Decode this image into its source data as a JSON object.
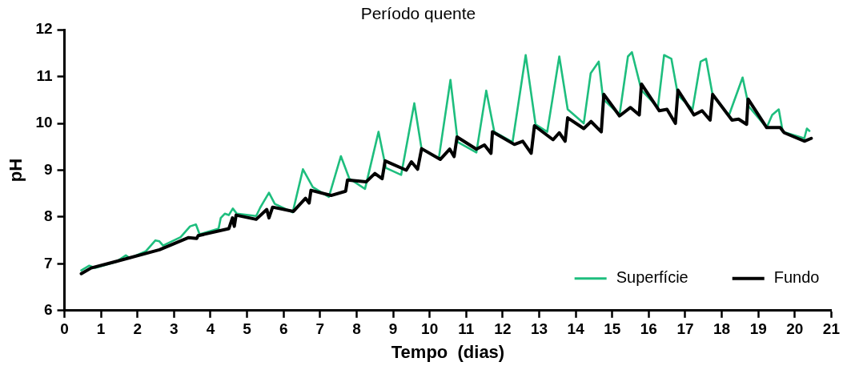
{
  "chart_data": {
    "type": "line",
    "title": "Período quente",
    "xlabel": "Tempo  (dias)",
    "ylabel": "pH",
    "xlim": [
      0,
      21
    ],
    "xticks": [
      0,
      1,
      2,
      3,
      4,
      5,
      6,
      7,
      8,
      9,
      10,
      11,
      12,
      13,
      14,
      15,
      16,
      17,
      18,
      19,
      20,
      21
    ],
    "ylim": [
      6,
      12
    ],
    "yticks": [
      6,
      7,
      8,
      9,
      10,
      11,
      12
    ],
    "grid": false,
    "legend": "bottom right",
    "marker": "none",
    "line_style": "solid",
    "series": [
      {
        "name": "Superfície",
        "color": "#1ebe7e",
        "x": [
          0.46,
          0.68,
          0.84,
          1.41,
          1.68,
          1.79,
          2.23,
          2.49,
          2.6,
          2.7,
          3.18,
          3.44,
          3.6,
          3.7,
          4.22,
          4.28,
          4.39,
          4.5,
          4.61,
          4.72,
          5.25,
          5.36,
          5.6,
          5.76,
          6.25,
          6.53,
          6.8,
          7.24,
          7.57,
          7.8,
          8.23,
          8.6,
          8.8,
          9.22,
          9.58,
          9.78,
          10.25,
          10.57,
          10.77,
          11.28,
          11.55,
          11.77,
          12.27,
          12.63,
          12.9,
          13.22,
          13.55,
          13.78,
          14.22,
          14.41,
          14.63,
          14.75,
          15.2,
          15.43,
          15.54,
          15.8,
          16.25,
          16.42,
          16.62,
          16.8,
          17.2,
          17.42,
          17.57,
          17.75,
          18.19,
          18.57,
          18.74,
          19.23,
          19.38,
          19.56,
          19.67,
          20.26,
          20.33,
          20.4
        ],
        "values": [
          6.86,
          6.96,
          6.91,
          7.04,
          7.18,
          7.12,
          7.27,
          7.5,
          7.48,
          7.39,
          7.57,
          7.8,
          7.84,
          7.63,
          7.75,
          7.98,
          8.07,
          8.04,
          8.18,
          8.07,
          8.02,
          8.2,
          8.52,
          8.28,
          8.1,
          9.02,
          8.64,
          8.43,
          9.3,
          8.82,
          8.6,
          9.82,
          9.05,
          8.9,
          10.43,
          9.45,
          9.25,
          10.93,
          9.6,
          9.38,
          10.7,
          9.82,
          9.6,
          11.46,
          9.98,
          9.82,
          11.43,
          10.3,
          10.0,
          11.07,
          11.32,
          10.52,
          10.18,
          11.43,
          11.52,
          10.71,
          10.34,
          11.46,
          11.38,
          10.6,
          10.3,
          11.32,
          11.38,
          10.6,
          10.16,
          10.98,
          10.36,
          9.91,
          10.18,
          10.3,
          9.82,
          9.68,
          9.89,
          9.84
        ]
      },
      {
        "name": "Fundo",
        "color": "#000000",
        "x": [
          0.46,
          0.73,
          1.41,
          2.6,
          3.4,
          3.62,
          3.66,
          4.5,
          4.6,
          4.65,
          4.7,
          5.25,
          5.54,
          5.6,
          5.7,
          6.27,
          6.6,
          6.7,
          6.75,
          7.3,
          7.7,
          7.75,
          8.26,
          8.5,
          8.7,
          8.78,
          9.36,
          9.5,
          9.67,
          9.78,
          10.29,
          10.55,
          10.67,
          10.75,
          11.28,
          11.5,
          11.68,
          11.72,
          12.32,
          12.55,
          12.78,
          12.87,
          13.38,
          13.55,
          13.71,
          13.78,
          14.22,
          14.42,
          14.7,
          14.77,
          15.2,
          15.5,
          15.74,
          15.8,
          16.29,
          16.5,
          16.73,
          16.8,
          17.24,
          17.46,
          17.68,
          17.75,
          18.28,
          18.46,
          18.68,
          18.72,
          19.23,
          19.6,
          19.71,
          20.26,
          20.45
        ],
        "values": [
          6.79,
          6.91,
          7.05,
          7.3,
          7.56,
          7.54,
          7.6,
          7.75,
          7.98,
          7.8,
          8.04,
          7.95,
          8.16,
          7.98,
          8.21,
          8.12,
          8.4,
          8.3,
          8.57,
          8.46,
          8.55,
          8.79,
          8.75,
          8.93,
          8.82,
          9.2,
          9.0,
          9.18,
          9.02,
          9.46,
          9.23,
          9.45,
          9.29,
          9.71,
          9.45,
          9.54,
          9.36,
          9.82,
          9.55,
          9.62,
          9.36,
          9.95,
          9.65,
          9.8,
          9.62,
          10.12,
          9.89,
          10.04,
          9.82,
          10.62,
          10.16,
          10.34,
          10.18,
          10.84,
          10.27,
          10.3,
          10.0,
          10.71,
          10.18,
          10.27,
          10.07,
          10.62,
          10.07,
          10.09,
          9.98,
          10.52,
          9.91,
          9.91,
          9.8,
          9.62,
          9.68
        ]
      }
    ]
  }
}
